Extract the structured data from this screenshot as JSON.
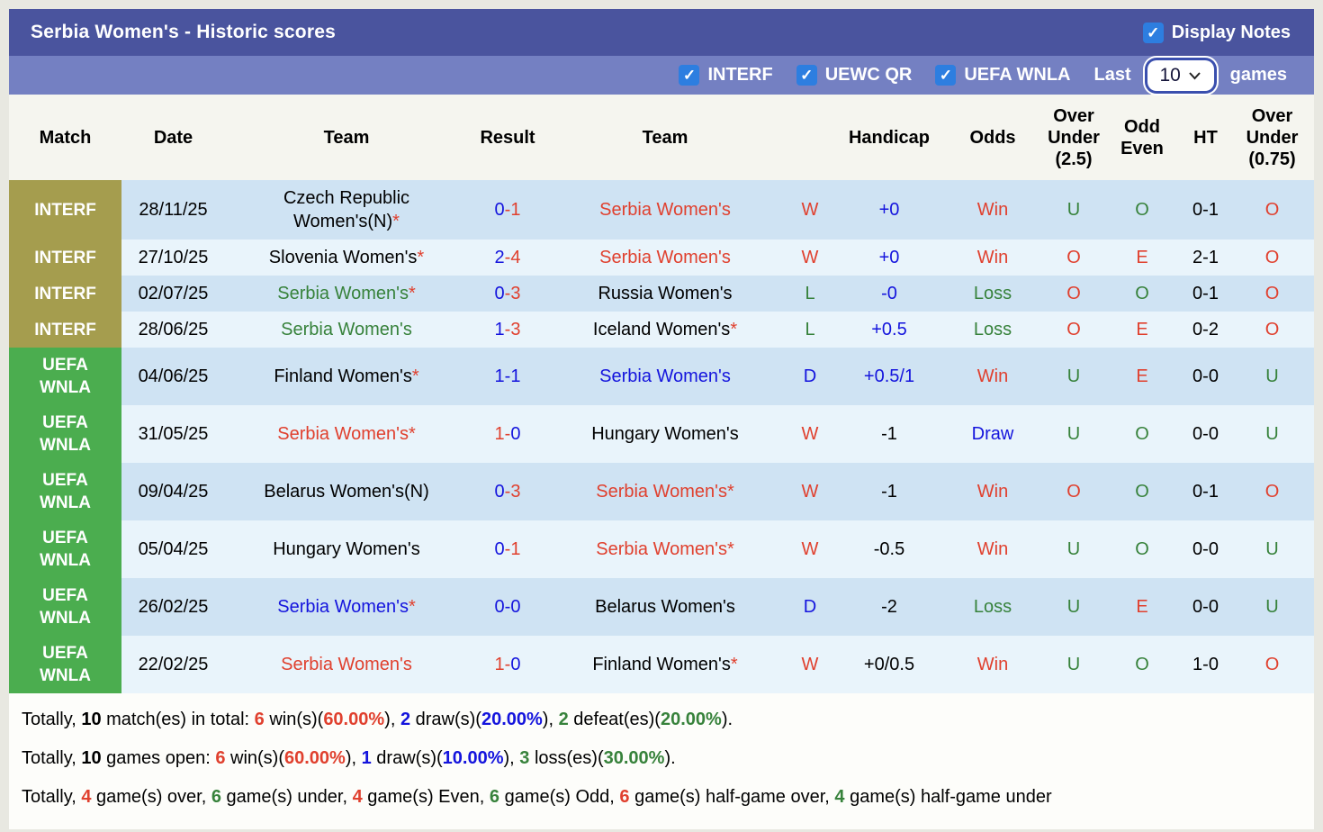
{
  "colors": {
    "title_bar": "#4a549e",
    "filter_bar": "#7480c2",
    "checkbox_blue": "#2d7ee0",
    "badge_olive": "#a59d4e",
    "badge_green": "#4bad4f",
    "row_stripe_dark": "#cfe3f3",
    "row_stripe_light": "#e9f4fb",
    "win_red": "#e0402e",
    "loss_green": "#37823b",
    "draw_blue": "#1414dd"
  },
  "header": {
    "title": "Serbia Women's - Historic scores",
    "display_notes_label": "Display Notes",
    "display_notes_checked": true
  },
  "filter_bar": {
    "competitions": [
      {
        "label": "INTERF",
        "checked": true
      },
      {
        "label": "UEWC QR",
        "checked": true
      },
      {
        "label": "UEFA WNLA",
        "checked": true
      }
    ],
    "last_label": "Last",
    "games_count": "10",
    "games_label": "games"
  },
  "table": {
    "columns": [
      "Match",
      "Date",
      "Team",
      "Result",
      "Team",
      "",
      "Handicap",
      "Odds",
      "Over Under (2.5)",
      "Odd Even",
      "HT",
      "Over Under (0.75)"
    ],
    "rows": [
      {
        "competition": {
          "lines": [
            "INTERF"
          ],
          "style": "olive"
        },
        "date": "28/11/25",
        "home": {
          "name": "Czech Republic Women's(N)",
          "color": "black",
          "star": true
        },
        "result": [
          {
            "t": "0",
            "c": "blue"
          },
          {
            "t": "-",
            "c": "red"
          },
          {
            "t": "1",
            "c": "red"
          }
        ],
        "away": {
          "name": "Serbia Women's",
          "color": "red",
          "star": false
        },
        "letter": {
          "t": "W",
          "c": "red"
        },
        "handicap": {
          "t": "+0",
          "c": "blue"
        },
        "odds": {
          "t": "Win",
          "c": "red"
        },
        "ou25": {
          "t": "U",
          "c": "green"
        },
        "odd_even": {
          "t": "O",
          "c": "green"
        },
        "ht": "0-1",
        "ou075": {
          "t": "O",
          "c": "red"
        }
      },
      {
        "competition": {
          "lines": [
            "INTERF"
          ],
          "style": "olive"
        },
        "date": "27/10/25",
        "home": {
          "name": "Slovenia Women's",
          "color": "black",
          "star": true
        },
        "result": [
          {
            "t": "2",
            "c": "blue"
          },
          {
            "t": "-",
            "c": "red"
          },
          {
            "t": "4",
            "c": "red"
          }
        ],
        "away": {
          "name": "Serbia Women's",
          "color": "red",
          "star": false
        },
        "letter": {
          "t": "W",
          "c": "red"
        },
        "handicap": {
          "t": "+0",
          "c": "blue"
        },
        "odds": {
          "t": "Win",
          "c": "red"
        },
        "ou25": {
          "t": "O",
          "c": "red"
        },
        "odd_even": {
          "t": "E",
          "c": "red"
        },
        "ht": "2-1",
        "ou075": {
          "t": "O",
          "c": "red"
        }
      },
      {
        "competition": {
          "lines": [
            "INTERF"
          ],
          "style": "olive"
        },
        "date": "02/07/25",
        "home": {
          "name": "Serbia Women's",
          "color": "green",
          "star": true
        },
        "result": [
          {
            "t": "0",
            "c": "blue"
          },
          {
            "t": "-",
            "c": "red"
          },
          {
            "t": "3",
            "c": "red"
          }
        ],
        "away": {
          "name": "Russia Women's",
          "color": "black",
          "star": false
        },
        "letter": {
          "t": "L",
          "c": "green"
        },
        "handicap": {
          "t": "-0",
          "c": "blue"
        },
        "odds": {
          "t": "Loss",
          "c": "green"
        },
        "ou25": {
          "t": "O",
          "c": "red"
        },
        "odd_even": {
          "t": "O",
          "c": "green"
        },
        "ht": "0-1",
        "ou075": {
          "t": "O",
          "c": "red"
        }
      },
      {
        "competition": {
          "lines": [
            "INTERF"
          ],
          "style": "olive"
        },
        "date": "28/06/25",
        "home": {
          "name": "Serbia Women's",
          "color": "green",
          "star": false
        },
        "result": [
          {
            "t": "1",
            "c": "blue"
          },
          {
            "t": "-",
            "c": "red"
          },
          {
            "t": "3",
            "c": "red"
          }
        ],
        "away": {
          "name": "Iceland Women's",
          "color": "black",
          "star": true
        },
        "letter": {
          "t": "L",
          "c": "green"
        },
        "handicap": {
          "t": "+0.5",
          "c": "blue"
        },
        "odds": {
          "t": "Loss",
          "c": "green"
        },
        "ou25": {
          "t": "O",
          "c": "red"
        },
        "odd_even": {
          "t": "E",
          "c": "red"
        },
        "ht": "0-2",
        "ou075": {
          "t": "O",
          "c": "red"
        }
      },
      {
        "competition": {
          "lines": [
            "UEFA",
            "WNLA"
          ],
          "style": "uefa"
        },
        "date": "04/06/25",
        "home": {
          "name": "Finland Women's",
          "color": "black",
          "star": true
        },
        "result": [
          {
            "t": "1",
            "c": "blue"
          },
          {
            "t": "-",
            "c": "blue"
          },
          {
            "t": "1",
            "c": "blue"
          }
        ],
        "away": {
          "name": "Serbia Women's",
          "color": "blue",
          "star": false
        },
        "letter": {
          "t": "D",
          "c": "blue"
        },
        "handicap": {
          "t": "+0.5/1",
          "c": "blue"
        },
        "odds": {
          "t": "Win",
          "c": "red"
        },
        "ou25": {
          "t": "U",
          "c": "green"
        },
        "odd_even": {
          "t": "E",
          "c": "red"
        },
        "ht": "0-0",
        "ou075": {
          "t": "U",
          "c": "green"
        }
      },
      {
        "competition": {
          "lines": [
            "UEFA",
            "WNLA"
          ],
          "style": "uefa"
        },
        "date": "31/05/25",
        "home": {
          "name": "Serbia Women's",
          "color": "red",
          "star": true
        },
        "result": [
          {
            "t": "1",
            "c": "red"
          },
          {
            "t": "-",
            "c": "red"
          },
          {
            "t": "0",
            "c": "blue"
          }
        ],
        "away": {
          "name": "Hungary Women's",
          "color": "black",
          "star": false
        },
        "letter": {
          "t": "W",
          "c": "red"
        },
        "handicap": {
          "t": "-1",
          "c": "black"
        },
        "odds": {
          "t": "Draw",
          "c": "blue"
        },
        "ou25": {
          "t": "U",
          "c": "green"
        },
        "odd_even": {
          "t": "O",
          "c": "green"
        },
        "ht": "0-0",
        "ou075": {
          "t": "U",
          "c": "green"
        }
      },
      {
        "competition": {
          "lines": [
            "UEFA",
            "WNLA"
          ],
          "style": "uefa"
        },
        "date": "09/04/25",
        "home": {
          "name": "Belarus Women's(N)",
          "color": "black",
          "star": false
        },
        "result": [
          {
            "t": "0",
            "c": "blue"
          },
          {
            "t": "-",
            "c": "red"
          },
          {
            "t": "3",
            "c": "red"
          }
        ],
        "away": {
          "name": "Serbia Women's",
          "color": "red",
          "star": true
        },
        "letter": {
          "t": "W",
          "c": "red"
        },
        "handicap": {
          "t": "-1",
          "c": "black"
        },
        "odds": {
          "t": "Win",
          "c": "red"
        },
        "ou25": {
          "t": "O",
          "c": "red"
        },
        "odd_even": {
          "t": "O",
          "c": "green"
        },
        "ht": "0-1",
        "ou075": {
          "t": "O",
          "c": "red"
        }
      },
      {
        "competition": {
          "lines": [
            "UEFA",
            "WNLA"
          ],
          "style": "uefa"
        },
        "date": "05/04/25",
        "home": {
          "name": "Hungary Women's",
          "color": "black",
          "star": false
        },
        "result": [
          {
            "t": "0",
            "c": "blue"
          },
          {
            "t": "-",
            "c": "red"
          },
          {
            "t": "1",
            "c": "red"
          }
        ],
        "away": {
          "name": "Serbia Women's",
          "color": "red",
          "star": true
        },
        "letter": {
          "t": "W",
          "c": "red"
        },
        "handicap": {
          "t": "-0.5",
          "c": "black"
        },
        "odds": {
          "t": "Win",
          "c": "red"
        },
        "ou25": {
          "t": "U",
          "c": "green"
        },
        "odd_even": {
          "t": "O",
          "c": "green"
        },
        "ht": "0-0",
        "ou075": {
          "t": "U",
          "c": "green"
        }
      },
      {
        "competition": {
          "lines": [
            "UEFA",
            "WNLA"
          ],
          "style": "uefa"
        },
        "date": "26/02/25",
        "home": {
          "name": "Serbia Women's",
          "color": "blue",
          "star": true
        },
        "result": [
          {
            "t": "0",
            "c": "blue"
          },
          {
            "t": "-",
            "c": "blue"
          },
          {
            "t": "0",
            "c": "blue"
          }
        ],
        "away": {
          "name": "Belarus Women's",
          "color": "black",
          "star": false
        },
        "letter": {
          "t": "D",
          "c": "blue"
        },
        "handicap": {
          "t": "-2",
          "c": "black"
        },
        "odds": {
          "t": "Loss",
          "c": "green"
        },
        "ou25": {
          "t": "U",
          "c": "green"
        },
        "odd_even": {
          "t": "E",
          "c": "red"
        },
        "ht": "0-0",
        "ou075": {
          "t": "U",
          "c": "green"
        }
      },
      {
        "competition": {
          "lines": [
            "UEFA",
            "WNLA"
          ],
          "style": "uefa"
        },
        "date": "22/02/25",
        "home": {
          "name": "Serbia Women's",
          "color": "red",
          "star": false
        },
        "result": [
          {
            "t": "1",
            "c": "red"
          },
          {
            "t": "-",
            "c": "red"
          },
          {
            "t": "0",
            "c": "blue"
          }
        ],
        "away": {
          "name": "Finland Women's",
          "color": "black",
          "star": true
        },
        "letter": {
          "t": "W",
          "c": "red"
        },
        "handicap": {
          "t": "+0/0.5",
          "c": "black"
        },
        "odds": {
          "t": "Win",
          "c": "red"
        },
        "ou25": {
          "t": "U",
          "c": "green"
        },
        "odd_even": {
          "t": "O",
          "c": "green"
        },
        "ht": "1-0",
        "ou075": {
          "t": "O",
          "c": "red"
        }
      }
    ]
  },
  "summary": {
    "lines": [
      {
        "name": "summary-total-matches",
        "segments": [
          {
            "t": "Totally, "
          },
          {
            "t": "10",
            "b": true
          },
          {
            "t": " match(es) in total: "
          },
          {
            "t": "6",
            "c": "red",
            "b": true
          },
          {
            "t": " win(s)("
          },
          {
            "t": "60.00%",
            "c": "red",
            "b": true
          },
          {
            "t": "), "
          },
          {
            "t": "2",
            "c": "blue",
            "b": true
          },
          {
            "t": " draw(s)("
          },
          {
            "t": "20.00%",
            "c": "blue",
            "b": true
          },
          {
            "t": "), "
          },
          {
            "t": "2",
            "c": "green",
            "b": true
          },
          {
            "t": " defeat(es)("
          },
          {
            "t": "20.00%",
            "c": "green",
            "b": true
          },
          {
            "t": ")."
          }
        ]
      },
      {
        "name": "summary-games-open",
        "segments": [
          {
            "t": "Totally, "
          },
          {
            "t": "10",
            "b": true
          },
          {
            "t": " games open: "
          },
          {
            "t": "6",
            "c": "red",
            "b": true
          },
          {
            "t": " win(s)("
          },
          {
            "t": "60.00%",
            "c": "red",
            "b": true
          },
          {
            "t": "), "
          },
          {
            "t": "1",
            "c": "blue",
            "b": true
          },
          {
            "t": " draw(s)("
          },
          {
            "t": "10.00%",
            "c": "blue",
            "b": true
          },
          {
            "t": "), "
          },
          {
            "t": "3",
            "c": "green",
            "b": true
          },
          {
            "t": " loss(es)("
          },
          {
            "t": "30.00%",
            "c": "green",
            "b": true
          },
          {
            "t": ")."
          }
        ]
      },
      {
        "name": "summary-over-under",
        "segments": [
          {
            "t": "Totally, "
          },
          {
            "t": "4",
            "c": "red",
            "b": true
          },
          {
            "t": " game(s) over, "
          },
          {
            "t": "6",
            "c": "green",
            "b": true
          },
          {
            "t": " game(s) under, "
          },
          {
            "t": "4",
            "c": "red",
            "b": true
          },
          {
            "t": " game(s) Even, "
          },
          {
            "t": "6",
            "c": "green",
            "b": true
          },
          {
            "t": " game(s) Odd, "
          },
          {
            "t": "6",
            "c": "red",
            "b": true
          },
          {
            "t": " game(s) half-game over, "
          },
          {
            "t": "4",
            "c": "green",
            "b": true
          },
          {
            "t": " game(s) half-game under"
          }
        ]
      }
    ]
  }
}
